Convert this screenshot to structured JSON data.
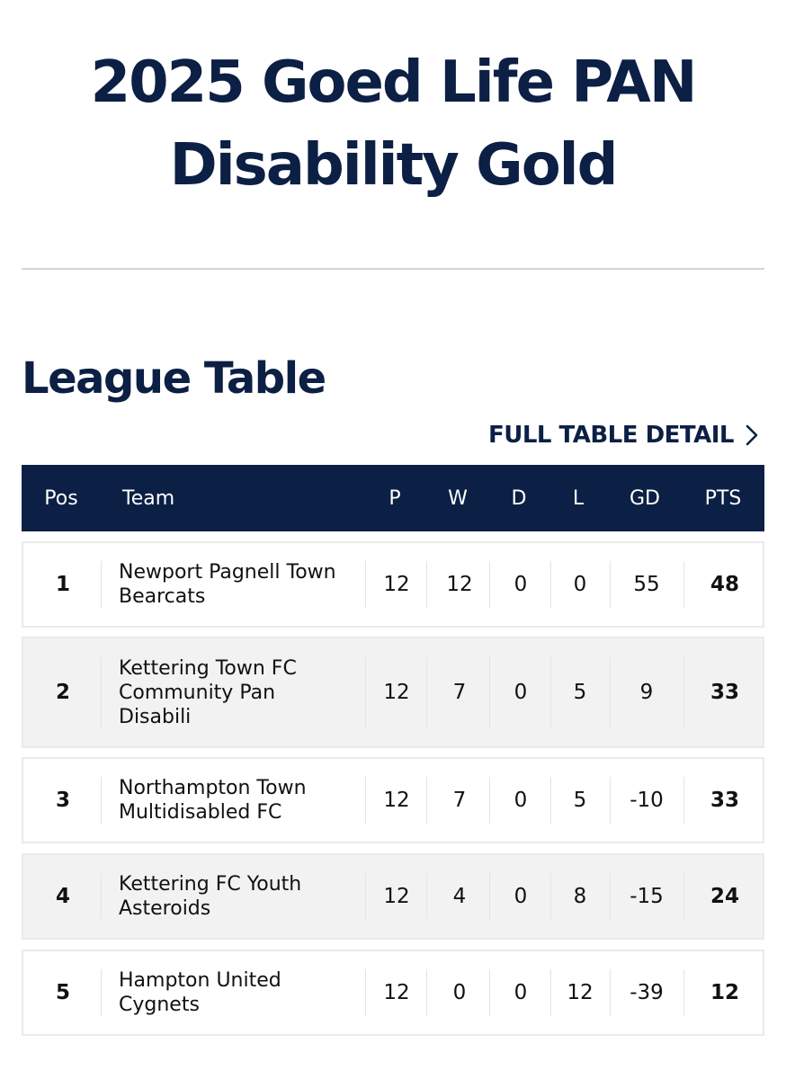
{
  "competition": {
    "title_line1": "2025 Goed Life PAN",
    "title_line2": "Disability Gold"
  },
  "league_table": {
    "heading": "League Table",
    "full_detail_label": "FULL TABLE DETAIL",
    "full_detail_icon": "chevron-right-icon",
    "header_bg_color": "#0c1f44",
    "columns": {
      "pos": "Pos",
      "team": "Team",
      "p": "P",
      "w": "W",
      "d": "D",
      "l": "L",
      "gd": "GD",
      "pts": "PTS"
    },
    "rows": [
      {
        "pos": "1",
        "team_line1": "Newport Pagnell Town",
        "team_line2": "Bearcats",
        "team_line3": "",
        "p": "12",
        "w": "12",
        "d": "0",
        "l": "0",
        "gd": "55",
        "pts": "48"
      },
      {
        "pos": "2",
        "team_line1": "Kettering Town FC",
        "team_line2": "Community Pan",
        "team_line3": "Disabili",
        "p": "12",
        "w": "7",
        "d": "0",
        "l": "5",
        "gd": "9",
        "pts": "33"
      },
      {
        "pos": "3",
        "team_line1": "Northampton Town",
        "team_line2": "Multidisabled FC",
        "team_line3": "",
        "p": "12",
        "w": "7",
        "d": "0",
        "l": "5",
        "gd": "-10",
        "pts": "33"
      },
      {
        "pos": "4",
        "team_line1": "Kettering FC Youth",
        "team_line2": "Asteroids",
        "team_line3": "",
        "p": "12",
        "w": "4",
        "d": "0",
        "l": "8",
        "gd": "-15",
        "pts": "24"
      },
      {
        "pos": "5",
        "team_line1": "Hampton United",
        "team_line2": "Cygnets",
        "team_line3": "",
        "p": "12",
        "w": "0",
        "d": "0",
        "l": "12",
        "gd": "-39",
        "pts": "12"
      }
    ]
  }
}
